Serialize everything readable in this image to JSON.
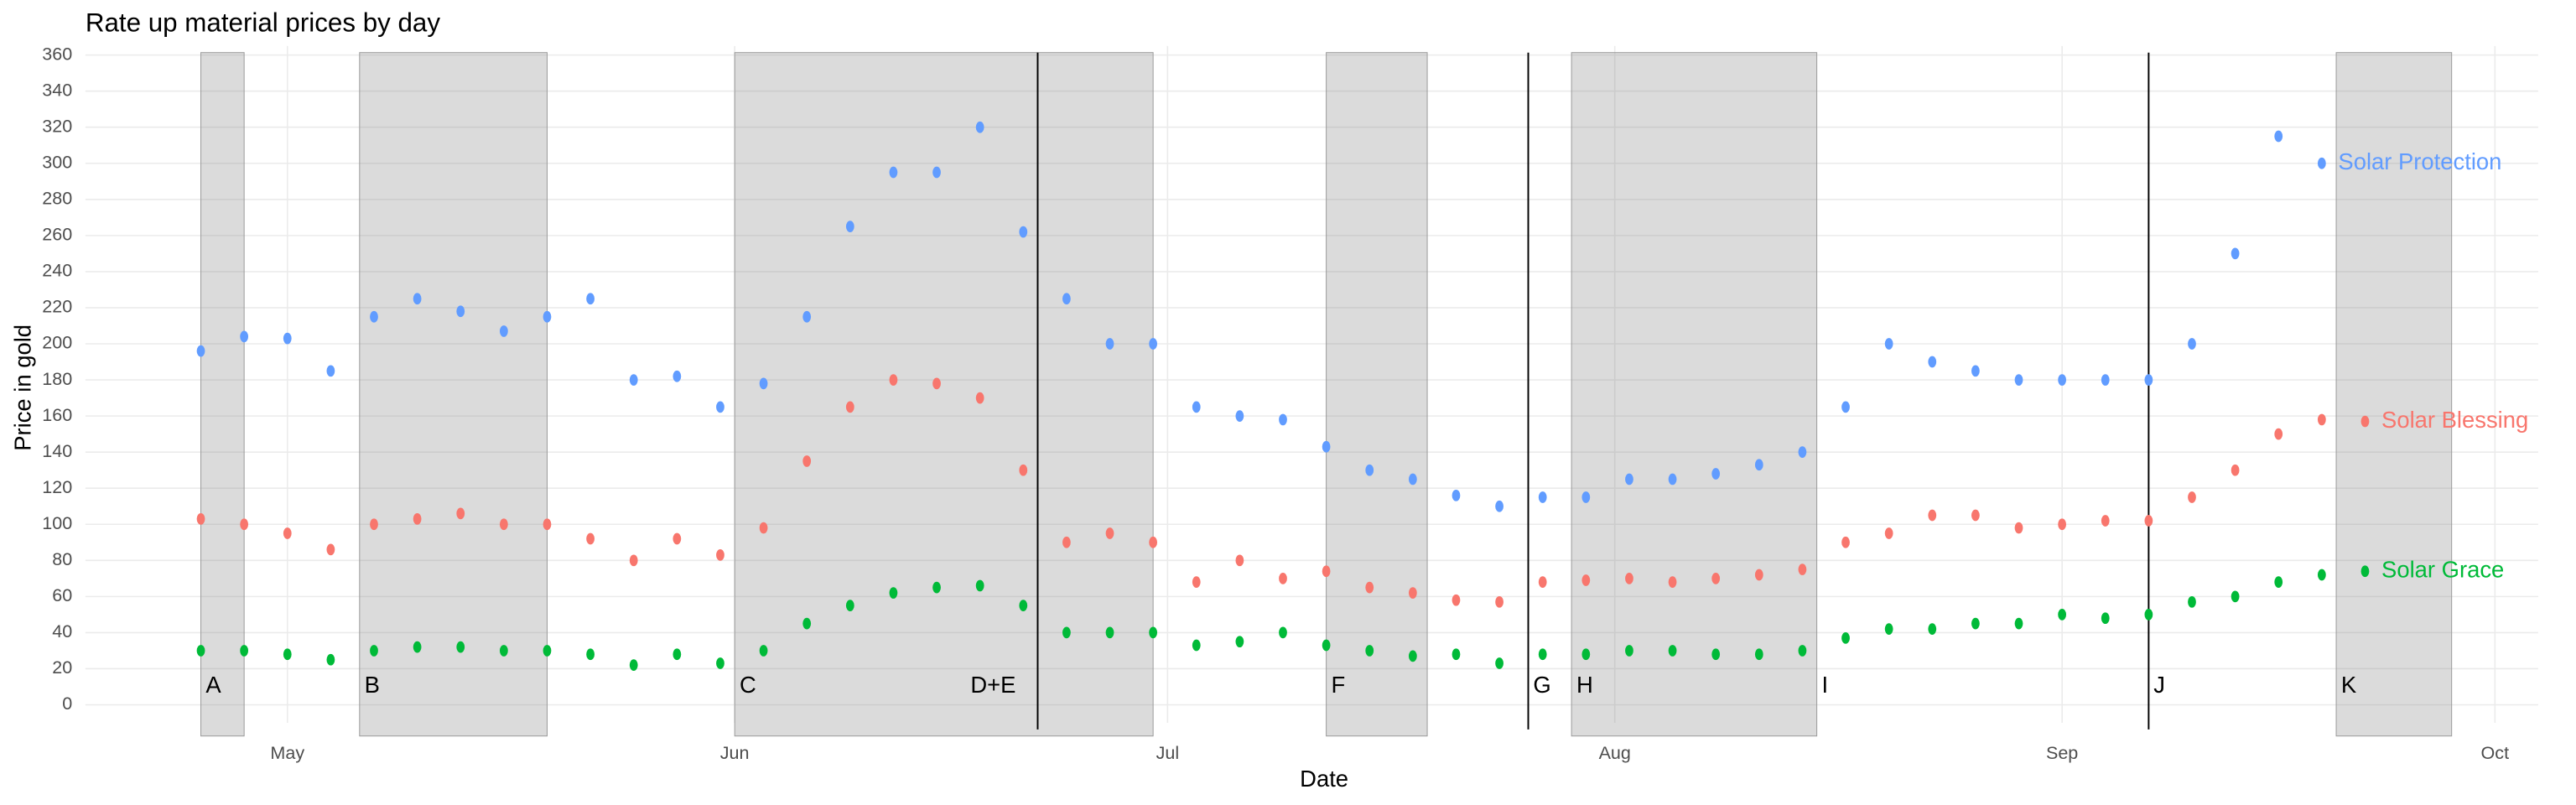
{
  "chart_data": {
    "type": "scatter",
    "title": "Rate up material prices by day",
    "x_label": "Date",
    "y_label": "Price in gold",
    "xlim": [
      -14,
      156
    ],
    "xticks": [
      {
        "value": 0,
        "label": "May"
      },
      {
        "value": 31,
        "label": "Jun"
      },
      {
        "value": 61,
        "label": "Jul"
      },
      {
        "value": 92,
        "label": "Aug"
      },
      {
        "value": 123,
        "label": "Sep"
      },
      {
        "value": 153,
        "label": "Oct"
      }
    ],
    "ylim": [
      -10,
      365
    ],
    "yticks": [
      0,
      20,
      40,
      60,
      80,
      100,
      120,
      140,
      160,
      180,
      200,
      220,
      240,
      260,
      280,
      300,
      320,
      340,
      360
    ],
    "grid": true,
    "shaded": [
      [
        -6,
        -3
      ],
      [
        5,
        18
      ],
      [
        31,
        60
      ],
      [
        72,
        79
      ],
      [
        89,
        106
      ],
      [
        142,
        150
      ]
    ],
    "lines": [
      52,
      86,
      129
    ],
    "events": [
      {
        "label": "A",
        "x": -6
      },
      {
        "label": "B",
        "x": 5
      },
      {
        "label": "C",
        "x": 31
      },
      {
        "label": "D+E",
        "x": 47
      },
      {
        "label": "F",
        "x": 72
      },
      {
        "label": "G",
        "x": 86
      },
      {
        "label": "H",
        "x": 89
      },
      {
        "label": "I",
        "x": 106
      },
      {
        "label": "J",
        "x": 129
      },
      {
        "label": "K",
        "x": 142
      }
    ],
    "series": [
      {
        "name": "Solar Protection",
        "color": "#619cff",
        "x": [
          -6,
          -3,
          0,
          3,
          6,
          9,
          12,
          15,
          18,
          21,
          24,
          27,
          30,
          33,
          36,
          39,
          42,
          45,
          48,
          51,
          54,
          57,
          60,
          63,
          66,
          69,
          72,
          75,
          78,
          81,
          84,
          87,
          90,
          93,
          96,
          99,
          102,
          105,
          108,
          111,
          114,
          117,
          120,
          123,
          126,
          129,
          132,
          135,
          138,
          141
        ],
        "values": [
          196,
          204,
          203,
          185,
          215,
          225,
          218,
          207,
          215,
          225,
          180,
          182,
          165,
          178,
          215,
          265,
          295,
          295,
          320,
          262,
          225,
          200,
          200,
          165,
          160,
          158,
          143,
          130,
          125,
          116,
          110,
          115,
          115,
          125,
          125,
          128,
          133,
          140,
          165,
          200,
          190,
          185,
          180,
          180,
          180,
          180,
          200,
          250,
          315,
          300
        ]
      },
      {
        "name": "Solar Blessing",
        "color": "#f8766d",
        "x": [
          -6,
          -3,
          0,
          3,
          6,
          9,
          12,
          15,
          18,
          21,
          24,
          27,
          30,
          33,
          36,
          39,
          42,
          45,
          48,
          51,
          54,
          57,
          60,
          63,
          66,
          69,
          72,
          75,
          78,
          81,
          84,
          87,
          90,
          93,
          96,
          99,
          102,
          105,
          108,
          111,
          114,
          117,
          120,
          123,
          126,
          129,
          132,
          135,
          138,
          141,
          144
        ],
        "values": [
          103,
          100,
          95,
          86,
          100,
          103,
          106,
          100,
          100,
          92,
          80,
          92,
          83,
          98,
          135,
          165,
          180,
          178,
          170,
          130,
          90,
          95,
          90,
          68,
          80,
          70,
          74,
          65,
          62,
          58,
          57,
          68,
          69,
          70,
          68,
          70,
          72,
          75,
          90,
          95,
          105,
          105,
          98,
          100,
          102,
          102,
          115,
          130,
          150,
          158,
          157
        ]
      },
      {
        "name": "Solar Grace",
        "color": "#00ba38",
        "x": [
          -6,
          -3,
          0,
          3,
          6,
          9,
          12,
          15,
          18,
          21,
          24,
          27,
          30,
          33,
          36,
          39,
          42,
          45,
          48,
          51,
          54,
          57,
          60,
          63,
          66,
          69,
          72,
          75,
          78,
          81,
          84,
          87,
          90,
          93,
          96,
          99,
          102,
          105,
          108,
          111,
          114,
          117,
          120,
          123,
          126,
          129,
          132,
          135,
          138,
          141,
          144
        ],
        "values": [
          30,
          30,
          28,
          25,
          30,
          32,
          32,
          30,
          30,
          28,
          22,
          28,
          23,
          30,
          45,
          55,
          62,
          65,
          66,
          55,
          40,
          40,
          40,
          33,
          35,
          40,
          33,
          30,
          27,
          28,
          23,
          28,
          28,
          30,
          30,
          28,
          28,
          30,
          37,
          42,
          42,
          45,
          45,
          50,
          48,
          50,
          57,
          60,
          68,
          72,
          74
        ]
      }
    ]
  }
}
